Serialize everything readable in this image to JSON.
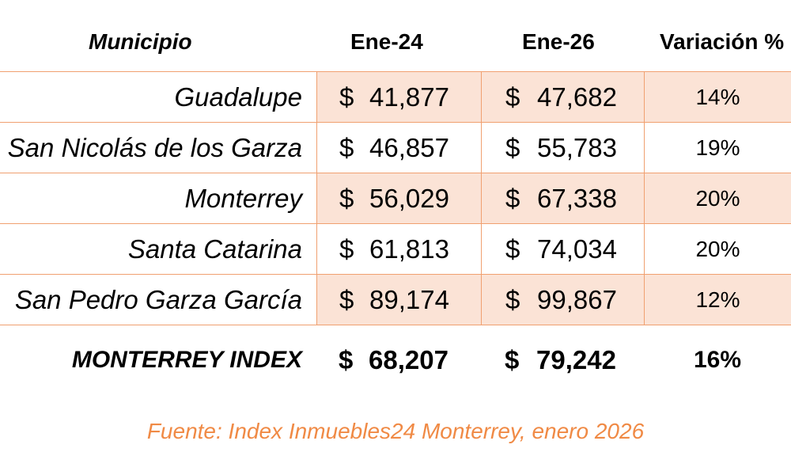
{
  "header": {
    "municipio": "Municipio",
    "ene24": "Ene-24",
    "ene26": "Ene-26",
    "variacion": "Variación %"
  },
  "currency_symbol": "$",
  "rows": [
    {
      "municipio": "Guadalupe",
      "ene24": "41,877",
      "ene26": "47,682",
      "variacion": "14%"
    },
    {
      "municipio": "San Nicolás de los Garza",
      "ene24": "46,857",
      "ene26": "55,783",
      "variacion": "19%"
    },
    {
      "municipio": "Monterrey",
      "ene24": "56,029",
      "ene26": "67,338",
      "variacion": "20%"
    },
    {
      "municipio": "Santa Catarina",
      "ene24": "61,813",
      "ene26": "74,034",
      "variacion": "20%"
    },
    {
      "municipio": "San Pedro Garza García",
      "ene24": "89,174",
      "ene26": "99,867",
      "variacion": "12%"
    }
  ],
  "total": {
    "municipio": "MONTERREY INDEX",
    "ene24": "68,207",
    "ene26": "79,242",
    "variacion": "16%"
  },
  "source": "Fuente: Index Inmuebles24 Monterrey, enero 2026",
  "colors": {
    "border": "#f0a070",
    "shade": "#fbe3d6",
    "source_text": "#f08a45"
  }
}
